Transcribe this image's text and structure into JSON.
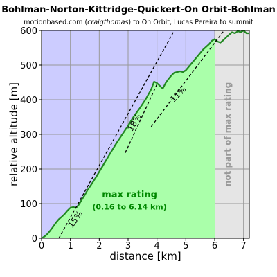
{
  "chart_data": {
    "type": "area",
    "title": "Bohlman-Norton-Kittridge-Quickert-On Orbit-Bohlman",
    "subtitle_plain": "motionbased.com (",
    "subtitle_italic": "craigthomas",
    "subtitle_rest": ") to On Orbit, Lucas Pereira to summit",
    "xlabel": "distance [km]",
    "ylabel": "relative altitude [m]",
    "xlim": [
      0,
      7.2
    ],
    "ylim": [
      0,
      600
    ],
    "xticks": [
      "0",
      "1",
      "2",
      "3",
      "4",
      "5",
      "6",
      "7"
    ],
    "yticks": [
      "0",
      "100",
      "200",
      "300",
      "400",
      "500",
      "600"
    ],
    "grid": true,
    "x": [
      0,
      0.1,
      0.2,
      0.3,
      0.4,
      0.5,
      0.6,
      0.7,
      0.8,
      0.9,
      1.0,
      1.1,
      1.2,
      1.3,
      1.4,
      1.5,
      1.6,
      1.7,
      1.8,
      1.9,
      2.0,
      2.2,
      2.4,
      2.6,
      2.8,
      3.0,
      3.2,
      3.4,
      3.6,
      3.8,
      3.9,
      4.0,
      4.1,
      4.2,
      4.3,
      4.4,
      4.5,
      4.6,
      4.7,
      4.8,
      4.9,
      5.0,
      5.2,
      5.4,
      5.6,
      5.8,
      5.9,
      6.0,
      6.1,
      6.2,
      6.3,
      6.4,
      6.5,
      6.6,
      6.7,
      6.8,
      6.9,
      7.0,
      7.1,
      7.2
    ],
    "y": [
      0,
      5,
      12,
      22,
      33,
      45,
      55,
      62,
      70,
      80,
      88,
      90,
      88,
      98,
      112,
      125,
      140,
      152,
      165,
      178,
      192,
      220,
      248,
      275,
      300,
      325,
      352,
      375,
      400,
      430,
      452,
      448,
      440,
      432,
      448,
      460,
      470,
      478,
      480,
      482,
      480,
      485,
      505,
      525,
      545,
      560,
      570,
      575,
      568,
      565,
      572,
      580,
      588,
      595,
      592,
      598,
      595,
      600,
      592,
      592
    ],
    "max_rating_range_km": [
      0.16,
      6.14
    ],
    "zones": {
      "max_rating_title": "max rating",
      "max_rating_range_text": "(0.16 to 6.14 km)",
      "excluded_start_km": 6.0,
      "excluded_label": "not part of max rating"
    },
    "grade_lines": [
      {
        "label": "15%",
        "grade": 0.15,
        "through_km": 0.6,
        "from_km": 0.6,
        "to_km": 5.0,
        "label_x_km": 1.25,
        "label_y_m": 50,
        "label_angle_deg": -55
      },
      {
        "label": "18%",
        "grade": 0.18,
        "through_km": 1.53,
        "from_km": 2.9,
        "to_km": 4.0,
        "label_x_km": 3.3,
        "label_y_m": 330,
        "label_angle_deg": -60
      },
      {
        "label": "11%",
        "grade": 0.11,
        "through_km": 0.87,
        "from_km": 3.8,
        "to_km": 6.9,
        "label_x_km": 4.8,
        "label_y_m": 410,
        "label_angle_deg": -45
      }
    ],
    "colors": {
      "background": "#ccccff",
      "area_fill": "#aaffaa",
      "line": "#228822",
      "excluded_fill": "#e5e5e5",
      "grid": "#999999",
      "zone_text": "#008800",
      "excluded_text": "#999999"
    }
  }
}
